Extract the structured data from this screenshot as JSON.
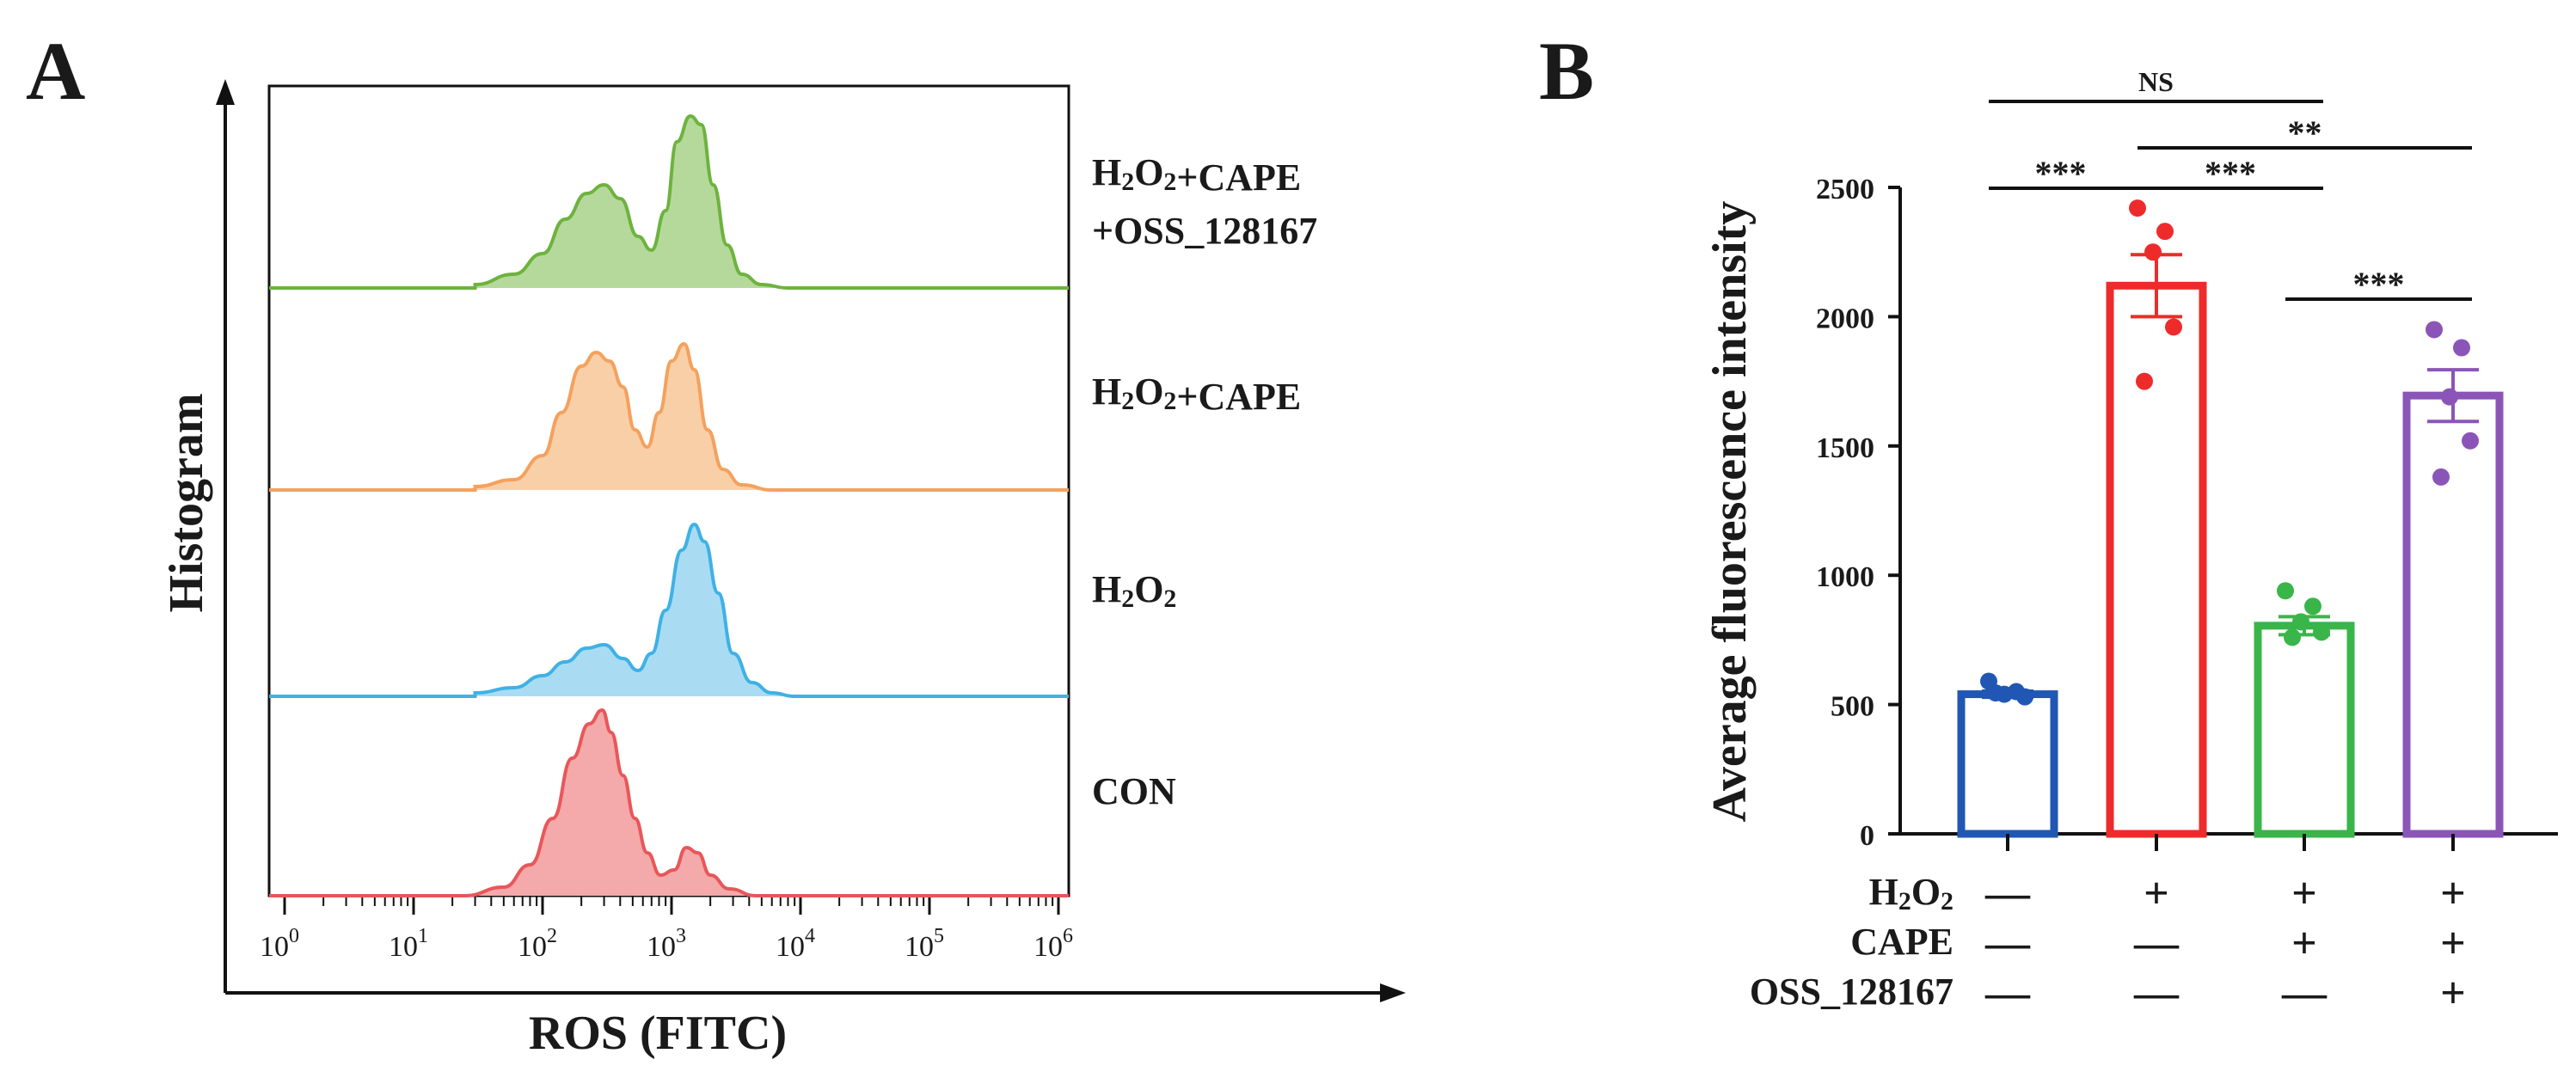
{
  "panels": {
    "a_letter": "A",
    "b_letter": "B"
  },
  "chart_data": [
    {
      "type": "area",
      "panel": "A",
      "xlabel": "ROS (FITC)",
      "ylabel": "Histogram",
      "x_scale": "log",
      "xlim": [
        1,
        1000000
      ],
      "x_ticks": [
        {
          "base": "10",
          "exp": "0"
        },
        {
          "base": "10",
          "exp": "1"
        },
        {
          "base": "10",
          "exp": "2"
        },
        {
          "base": "10",
          "exp": "3"
        },
        {
          "base": "10",
          "exp": "4"
        },
        {
          "base": "10",
          "exp": "5"
        },
        {
          "base": "10",
          "exp": "6"
        }
      ],
      "series": [
        {
          "name": "H2O2+CAPE +OSS_128167",
          "label_lines": [
            "H2O2+CAPE",
            "+OSS_128167"
          ],
          "color": "#6db33f",
          "fill": "#b5d99a",
          "x": [
            30,
            60,
            100,
            150,
            220,
            300,
            400,
            550,
            700,
            900,
            1100,
            1400,
            1700,
            2100,
            2700,
            3500,
            5000,
            8000
          ],
          "y": [
            0.02,
            0.08,
            0.2,
            0.4,
            0.55,
            0.6,
            0.52,
            0.3,
            0.22,
            0.45,
            0.85,
            1.0,
            0.95,
            0.6,
            0.25,
            0.08,
            0.02,
            0.0
          ]
        },
        {
          "name": "H2O2+CAPE",
          "label_lines": [
            "H2O2+CAPE"
          ],
          "color": "#f4a15d",
          "fill": "#f9cfa8",
          "x": [
            30,
            60,
            100,
            140,
            200,
            260,
            330,
            420,
            520,
            650,
            800,
            1000,
            1250,
            1500,
            1900,
            2500,
            3500,
            6000
          ],
          "y": [
            0.02,
            0.06,
            0.2,
            0.45,
            0.72,
            0.8,
            0.75,
            0.6,
            0.35,
            0.25,
            0.45,
            0.75,
            0.85,
            0.7,
            0.35,
            0.12,
            0.03,
            0.0
          ]
        },
        {
          "name": "H2O2",
          "label_lines": [
            "H2O2"
          ],
          "color": "#3fb1e5",
          "fill": "#a9dcf3",
          "x": [
            30,
            60,
            100,
            150,
            220,
            300,
            420,
            550,
            700,
            900,
            1200,
            1500,
            1800,
            2300,
            3000,
            4200,
            6000,
            9000
          ],
          "y": [
            0.02,
            0.05,
            0.12,
            0.2,
            0.28,
            0.3,
            0.22,
            0.15,
            0.25,
            0.5,
            0.85,
            1.0,
            0.9,
            0.6,
            0.25,
            0.08,
            0.02,
            0.0
          ]
        },
        {
          "name": "CON",
          "label_lines": [
            "CON"
          ],
          "color": "#e8575a",
          "fill": "#f4a9aa",
          "x": [
            25,
            50,
            80,
            120,
            170,
            230,
            290,
            340,
            420,
            520,
            650,
            820,
            1050,
            1300,
            1600,
            2000,
            2800,
            4500
          ],
          "y": [
            0.0,
            0.05,
            0.18,
            0.45,
            0.8,
            1.0,
            1.08,
            0.95,
            0.7,
            0.45,
            0.25,
            0.12,
            0.15,
            0.28,
            0.25,
            0.12,
            0.04,
            0.0
          ]
        }
      ]
    },
    {
      "type": "bar",
      "panel": "B",
      "ylabel": "Average fluorescence intensity",
      "ylim": [
        0,
        2500
      ],
      "y_ticks": [
        0,
        500,
        1000,
        1500,
        2000,
        2500
      ],
      "bars": [
        {
          "mean": 540,
          "sem": 12,
          "color": "#2157b4",
          "points": [
            590,
            550,
            540,
            530,
            545
          ]
        },
        {
          "mean": 2120,
          "sem": 120,
          "color": "#ee2b2b",
          "points": [
            2420,
            2330,
            2250,
            1960,
            1750
          ]
        },
        {
          "mean": 805,
          "sem": 35,
          "color": "#39b54a",
          "points": [
            940,
            880,
            820,
            780,
            760
          ]
        },
        {
          "mean": 1695,
          "sem": 100,
          "color": "#8b55b8",
          "points": [
            1950,
            1880,
            1690,
            1520,
            1380
          ]
        }
      ],
      "design": {
        "rows": [
          "H2O2",
          "CAPE",
          "OSS_128167"
        ],
        "values": [
          [
            "—",
            "+",
            "+",
            "+"
          ],
          [
            "—",
            "—",
            "+",
            "+"
          ],
          [
            "—",
            "—",
            "—",
            "+"
          ]
        ]
      },
      "significance": [
        {
          "from": 0,
          "to": 2,
          "level": 3,
          "label": "NS"
        },
        {
          "from": 1,
          "to": 3,
          "level": 2,
          "label": "**"
        },
        {
          "from": 0,
          "to": 1,
          "level": 1,
          "label": "***"
        },
        {
          "from": 1,
          "to": 2,
          "level": 1,
          "label": "***"
        },
        {
          "from": 2,
          "to": 3,
          "level": 0,
          "label": "***"
        }
      ]
    }
  ]
}
